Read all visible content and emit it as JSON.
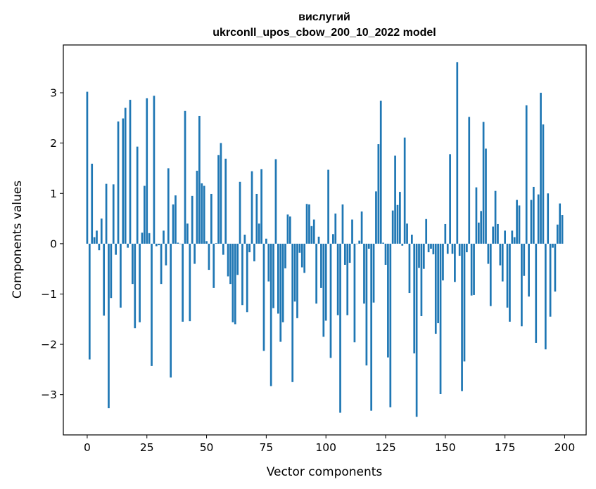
{
  "chart_data": {
    "type": "bar",
    "title_lines": [
      "вислугий",
      "ukrconll_upos_cbow_200_10_2022 model"
    ],
    "xlabel": "Vector components",
    "ylabel": "Components values",
    "xlim": [
      -10,
      209
    ],
    "ylim": [
      -3.8,
      3.95
    ],
    "x_ticks": [
      0,
      25,
      50,
      75,
      100,
      125,
      150,
      175,
      200
    ],
    "y_ticks": [
      -3,
      -2,
      -1,
      0,
      1,
      2,
      3
    ],
    "bar_color": "#1f77b4",
    "grid": false,
    "values": [
      3.02,
      -2.3,
      1.59,
      0.13,
      0.26,
      -0.13,
      0.5,
      -1.43,
      1.19,
      -3.27,
      -1.08,
      1.18,
      -0.22,
      2.43,
      -1.27,
      2.49,
      2.7,
      -0.08,
      2.86,
      -0.8,
      -1.68,
      1.93,
      -1.56,
      0.22,
      1.15,
      2.89,
      0.21,
      -2.43,
      2.94,
      -0.05,
      -0.03,
      -0.8,
      0.26,
      -0.43,
      1.5,
      -2.66,
      0.78,
      0.96,
      0.02,
      0.0,
      -1.55,
      2.64,
      0.4,
      -1.54,
      0.95,
      -0.4,
      1.45,
      2.54,
      1.2,
      1.15,
      0.05,
      -0.52,
      0.99,
      -0.88,
      0.01,
      1.76,
      2.0,
      -0.22,
      1.69,
      -0.65,
      -0.8,
      -1.56,
      -1.6,
      -0.62,
      1.23,
      -1.22,
      0.18,
      -1.36,
      -0.17,
      1.44,
      -0.35,
      0.99,
      0.4,
      1.48,
      -2.13,
      0.1,
      -0.75,
      -2.83,
      -1.28,
      1.68,
      -1.39,
      -1.95,
      -1.56,
      -0.49,
      0.58,
      0.54,
      -2.75,
      -1.15,
      -1.48,
      -0.18,
      -0.47,
      -0.58,
      0.79,
      0.78,
      0.35,
      0.48,
      -1.19,
      0.14,
      -0.88,
      -1.85,
      -1.53,
      1.47,
      -2.27,
      0.19,
      0.6,
      -1.42,
      -3.36,
      0.78,
      -0.42,
      -1.42,
      -0.38,
      0.48,
      -1.96,
      0.0,
      0.06,
      0.64,
      -1.19,
      -2.42,
      -0.1,
      -3.32,
      -1.17,
      1.04,
      1.98,
      2.84,
      0.02,
      -0.42,
      -2.26,
      -3.25,
      0.66,
      1.75,
      0.77,
      1.03,
      -0.04,
      2.11,
      0.4,
      -0.98,
      0.18,
      -2.18,
      -3.44,
      -0.48,
      -1.44,
      -0.5,
      0.49,
      -0.17,
      -0.1,
      -0.21,
      -1.79,
      -1.58,
      -2.99,
      -0.73,
      0.39,
      -0.2,
      1.78,
      -0.2,
      -0.76,
      3.61,
      -0.24,
      -2.93,
      -2.34,
      -0.17,
      2.52,
      -1.03,
      -1.02,
      1.12,
      0.42,
      0.65,
      2.42,
      1.89,
      -0.4,
      -1.24,
      0.34,
      1.05,
      0.39,
      -0.43,
      -0.75,
      0.26,
      -1.27,
      -1.55,
      0.26,
      0.13,
      0.87,
      0.76,
      -1.64,
      -0.64,
      2.75,
      -1.05,
      0.87,
      1.13,
      -1.97,
      0.98,
      3.0,
      2.37,
      -2.1,
      1.0,
      -1.45,
      -0.08,
      -0.95,
      0.38,
      0.8,
      0.57
    ]
  }
}
